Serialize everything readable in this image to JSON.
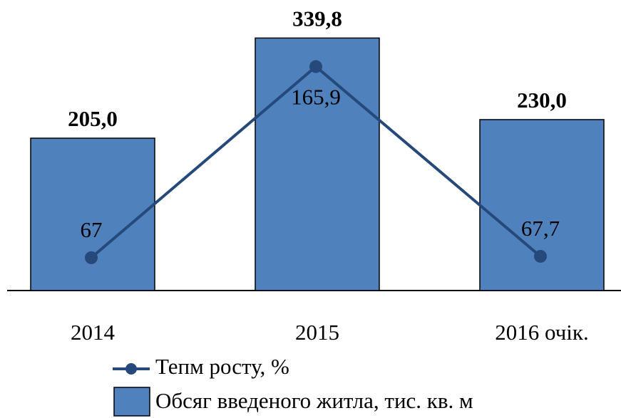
{
  "chart_data": {
    "type": "bar",
    "categories": [
      "2014",
      "2015",
      "2016 очік."
    ],
    "series": [
      {
        "name": "Обсяг введеного житла, тис. кв. м",
        "type": "bar",
        "color": "#4f81bd",
        "values": [
          205.0,
          339.8,
          230.0
        ],
        "value_labels": [
          "205,0",
          "339,8",
          "230,0"
        ]
      },
      {
        "name": "Тепм росту, %",
        "type": "line",
        "axis": "y2",
        "color": "#24497a",
        "values": [
          67,
          165.9,
          67.7
        ],
        "value_labels": [
          "67",
          "165,9",
          "67,7"
        ]
      }
    ],
    "ylim": [
      0,
      390
    ],
    "y2lim": [
      50,
      200
    ]
  }
}
